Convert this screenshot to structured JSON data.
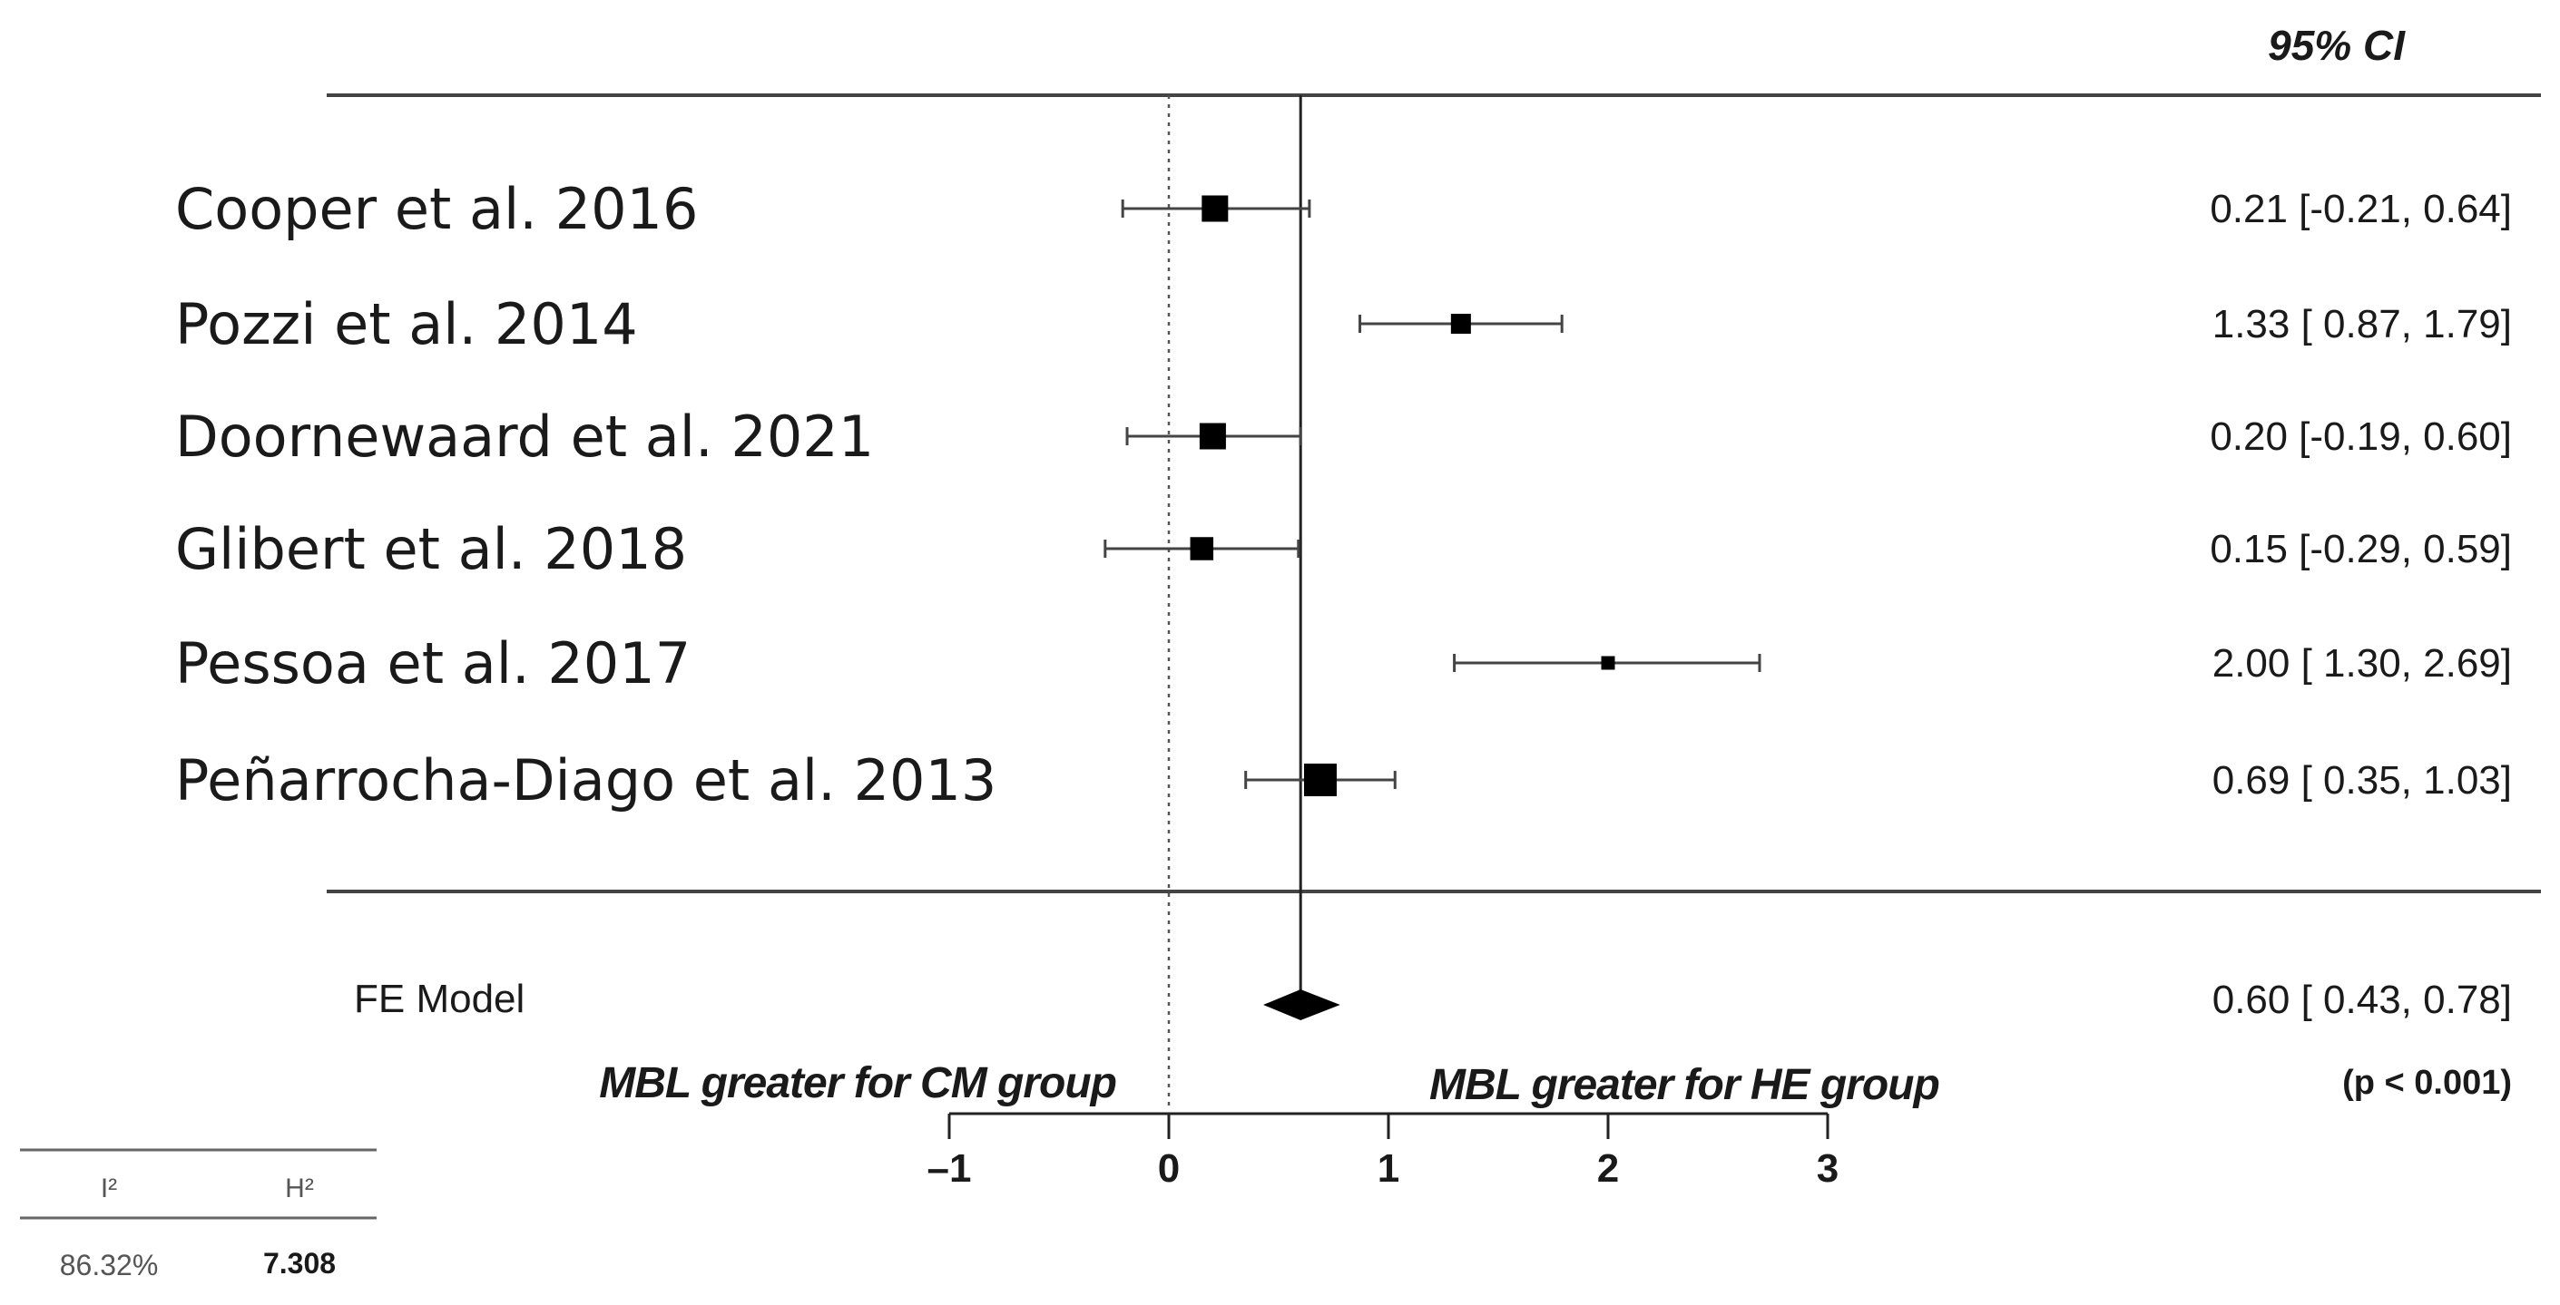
{
  "chart_data": {
    "type": "forest",
    "header": "95% CI",
    "studies": [
      {
        "label": "Cooper et al. 2016",
        "estimate": 0.21,
        "lower": -0.21,
        "upper": 0.64,
        "ci_text": "0.21 [-0.21, 0.64]",
        "weight": 3
      },
      {
        "label": "Pozzi et al. 2014",
        "estimate": 1.33,
        "lower": 0.87,
        "upper": 1.79,
        "ci_text": "1.33 [ 0.87, 1.79]",
        "weight": 2
      },
      {
        "label": "Doornewaard et al. 2021",
        "estimate": 0.2,
        "lower": -0.19,
        "upper": 0.6,
        "ci_text": "0.20 [-0.19, 0.60]",
        "weight": 3
      },
      {
        "label": "Glibert et al. 2018",
        "estimate": 0.15,
        "lower": -0.29,
        "upper": 0.59,
        "ci_text": "0.15 [-0.29, 0.59]",
        "weight": 2.5
      },
      {
        "label": "Pessoa et al. 2017",
        "estimate": 2.0,
        "lower": 1.3,
        "upper": 2.69,
        "ci_text": "2.00 [ 1.30, 2.69]",
        "weight": 1
      },
      {
        "label": "Peñarrocha-Diago et al. 2013",
        "estimate": 0.69,
        "lower": 0.35,
        "upper": 1.03,
        "ci_text": "0.69 [ 0.35, 1.03]",
        "weight": 4
      }
    ],
    "model": {
      "label": "FE Model",
      "estimate": 0.6,
      "lower": 0.43,
      "upper": 0.78,
      "ci_text": "0.60 [ 0.43, 0.78]",
      "p_text": "(p < 0.001)"
    },
    "xlim": [
      -1,
      3
    ],
    "xticks": [
      -1,
      0,
      1,
      2,
      3
    ],
    "xtick_labels": [
      "–1",
      "0",
      "1",
      "2",
      "3"
    ],
    "left_label": "MBL greater for CM group",
    "right_label": "MBL greater for HE group",
    "heterogeneity": {
      "headers": [
        "I²",
        "H²"
      ],
      "values": [
        "86.32%",
        "7.308"
      ]
    }
  }
}
